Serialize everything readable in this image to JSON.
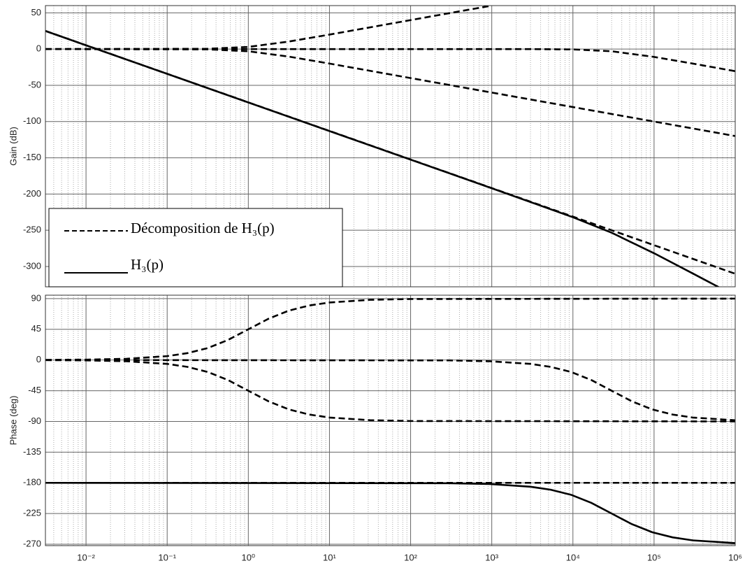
{
  "chart_data": [
    {
      "type": "line",
      "ylabel": "Gain (dB)",
      "xscale": "log",
      "grid": true,
      "legend": "lower left",
      "xlim": [
        0.00316,
        1000000
      ],
      "ylim": [
        -328,
        60
      ],
      "yticks": [
        50,
        0,
        -50,
        -100,
        -150,
        -200,
        -250,
        -300
      ],
      "series": [
        {
          "name": "Décomposition de H₃(p)",
          "color": "#000000",
          "dashed": true,
          "x": [
            0.00316,
            1000000
          ],
          "values": [
            25,
            -310
          ]
        },
        {
          "color": "#000000",
          "dashed": true,
          "x": [
            0.00316,
            0.316,
            1,
            3.16,
            10,
            100,
            1000
          ],
          "values": [
            0,
            0.4,
            3,
            10.4,
            20,
            40,
            60
          ]
        },
        {
          "color": "#000000",
          "dashed": true,
          "x": [
            0.00316,
            0.316,
            1,
            3.16,
            10,
            100,
            1000,
            10000,
            100000,
            1000000
          ],
          "values": [
            0,
            -0.4,
            -3,
            -10.4,
            -20,
            -40,
            -60,
            -80,
            -100,
            -120
          ]
        },
        {
          "color": "#000000",
          "dashed": true,
          "x": [
            0.00316,
            3000,
            10000,
            30000,
            100000,
            300000,
            1000000
          ],
          "values": [
            0,
            -0.04,
            -0.46,
            -3,
            -10.8,
            -20,
            -30.5
          ]
        },
        {
          "name": "H₃(p)",
          "color": "#000000",
          "dashed": false,
          "x": [
            0.00316,
            1000,
            10000,
            30000,
            100000,
            300000,
            1000000
          ],
          "values": [
            25,
            -192,
            -232,
            -253.4,
            -281.7,
            -309.6,
            -340.5
          ]
        }
      ]
    },
    {
      "type": "line",
      "ylabel": "Phase (deg)",
      "xscale": "log",
      "grid": true,
      "xlim": [
        0.00316,
        1000000
      ],
      "ylim": [
        -272,
        95
      ],
      "yticks": [
        90,
        45,
        0,
        -45,
        -90,
        -135,
        -180,
        -225,
        -270
      ],
      "xticks": [
        {
          "value": 0.01,
          "label": "10⁻²"
        },
        {
          "value": 0.1,
          "label": "10⁻¹"
        },
        {
          "value": 1,
          "label": "10⁰"
        },
        {
          "value": 10,
          "label": "10¹"
        },
        {
          "value": 100,
          "label": "10²"
        },
        {
          "value": 1000,
          "label": "10³"
        },
        {
          "value": 10000,
          "label": "10⁴"
        },
        {
          "value": 100000,
          "label": "10⁵"
        },
        {
          "value": 1000000,
          "label": "10⁶"
        }
      ],
      "series": [
        {
          "color": "#000000",
          "dashed": true,
          "x": [
            0.00316,
            0.01,
            0.0316,
            0.1,
            0.178,
            0.316,
            0.562,
            1,
            1.78,
            3.16,
            5.62,
            10,
            31.6,
            100,
            1000000
          ],
          "values": [
            0.18,
            0.57,
            1.8,
            5.7,
            10.1,
            17.5,
            29.4,
            45,
            60.6,
            72.4,
            79.9,
            84.3,
            88.2,
            89.4,
            90
          ]
        },
        {
          "color": "#000000",
          "dashed": true,
          "x": [
            0.00316,
            0.01,
            0.0316,
            0.1,
            0.178,
            0.316,
            0.562,
            1,
            1.78,
            3.16,
            5.62,
            10,
            31.6,
            100,
            1000000
          ],
          "values": [
            -0.18,
            -0.57,
            -1.8,
            -5.7,
            -10.1,
            -17.5,
            -29.4,
            -45,
            -60.6,
            -72.4,
            -79.9,
            -84.3,
            -88.2,
            -89.4,
            -90
          ]
        },
        {
          "color": "#000000",
          "dashed": true,
          "x": [
            0.00316,
            300,
            948,
            3000,
            5340,
            9490,
            16900,
            30000,
            53400,
            94900,
            169000,
            300000,
            1000000
          ],
          "values": [
            0,
            -0.57,
            -1.8,
            -5.7,
            -10.1,
            -17.5,
            -29.4,
            -45,
            -60.6,
            -72.4,
            -79.9,
            -84.3,
            -88.3
          ]
        },
        {
          "color": "#000000",
          "dashed": true,
          "x": [
            0.00316,
            1000000
          ],
          "values": [
            -180,
            -180
          ]
        },
        {
          "color": "#000000",
          "dashed": false,
          "x": [
            0.00316,
            300,
            948,
            3000,
            5340,
            9490,
            16900,
            30000,
            53400,
            94900,
            169000,
            300000,
            1000000
          ],
          "values": [
            -180,
            -180.57,
            -181.8,
            -185.7,
            -190.1,
            -197.5,
            -209.4,
            -225,
            -240.6,
            -252.4,
            -259.9,
            -264.3,
            -268.3
          ]
        }
      ]
    }
  ]
}
